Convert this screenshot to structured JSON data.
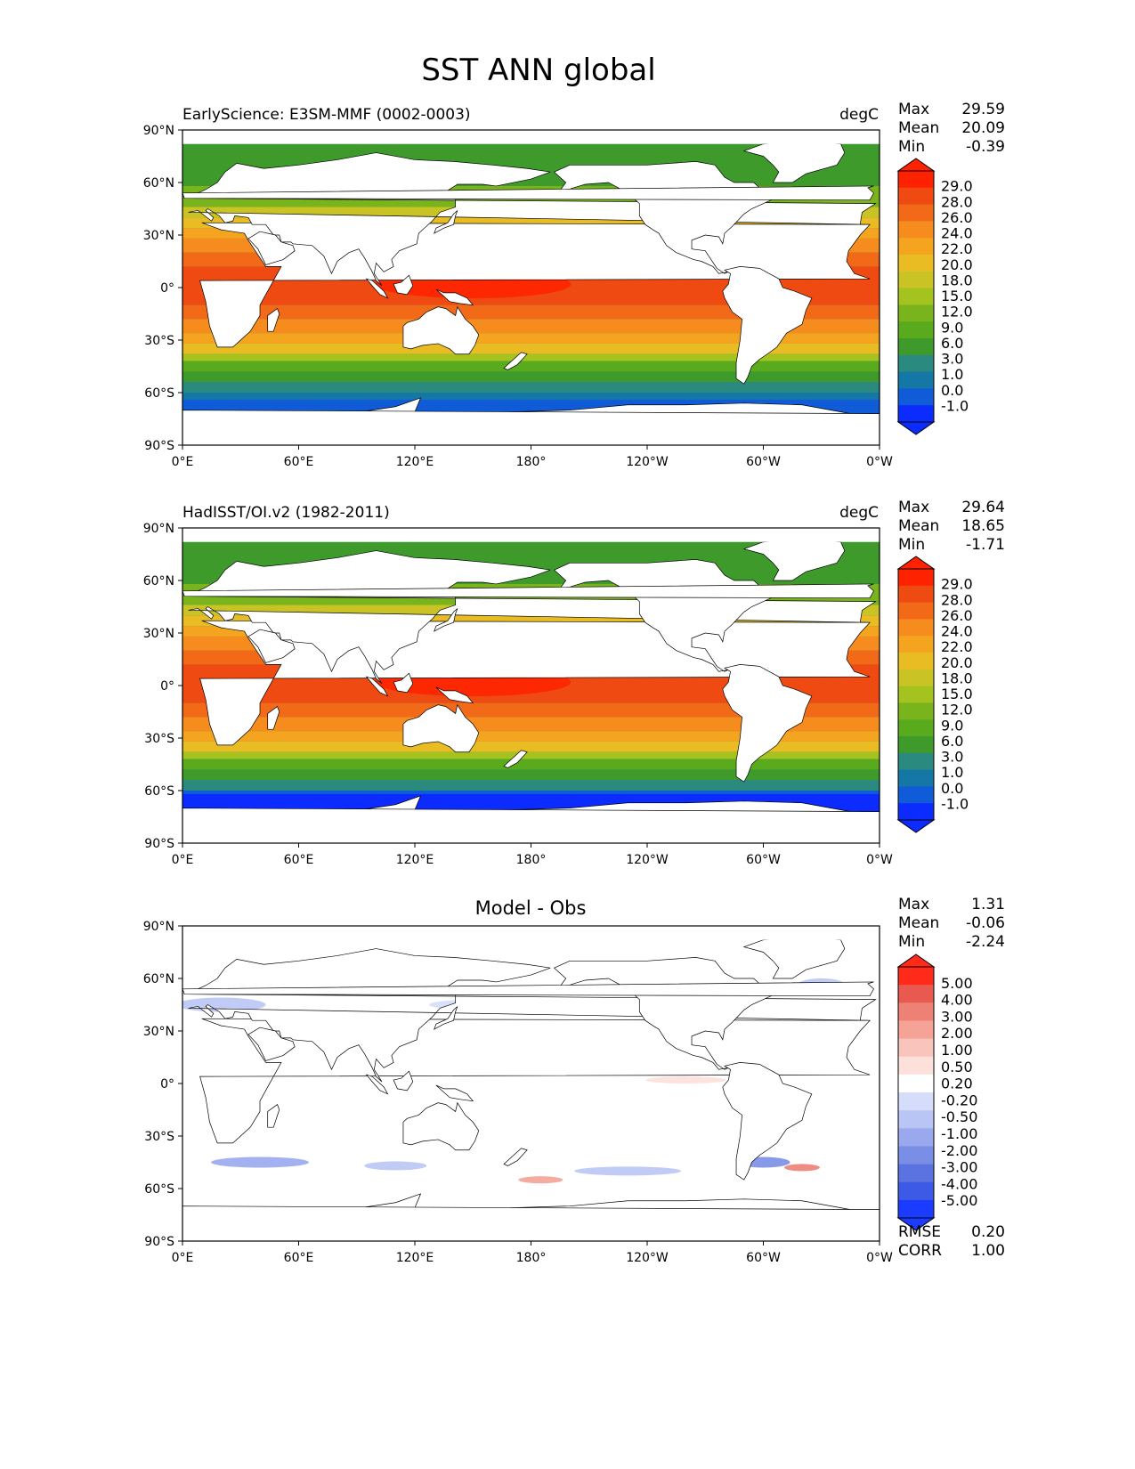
{
  "figure": {
    "title": "SST ANN global"
  },
  "colors": {
    "land": "#ffffff",
    "coast": "#000000",
    "sst_levels": [
      "#0b2bff",
      "#0f5bd8",
      "#1577a6",
      "#2a8a7f",
      "#3f9a2c",
      "#5aaa1e",
      "#7ab41c",
      "#a5c31e",
      "#c9c325",
      "#e8bc22",
      "#f4a41f",
      "#f68b1e",
      "#f26a18",
      "#ee4a12",
      "#ff2200"
    ],
    "diff_levels": [
      "#1b3cff",
      "#3d5ae6",
      "#5a73e0",
      "#7a8ee6",
      "#9aa9ee",
      "#b9c6f5",
      "#d5ddfa",
      "#ffffff",
      "#fde0da",
      "#f8c4bb",
      "#f4a396",
      "#ee8175",
      "#e85a4f",
      "#ff2a1a"
    ]
  },
  "panels": [
    {
      "id": "test",
      "left_title": "EarlyScience: E3SM-MMF (0002-0003)",
      "center_title": "",
      "right_title": "degC",
      "stats": [
        {
          "label": "Max",
          "value": "29.59"
        },
        {
          "label": "Mean",
          "value": "20.09"
        },
        {
          "label": "Min",
          "value": "-0.39"
        }
      ],
      "colorbar_ticks": [
        "29.0",
        "28.0",
        "26.0",
        "24.0",
        "22.0",
        "20.0",
        "18.0",
        "15.0",
        "12.0",
        "9.0",
        "6.0",
        "3.0",
        "1.0",
        "0.0",
        "-1.0"
      ],
      "metrics": []
    },
    {
      "id": "ref",
      "left_title": "HadISST/OI.v2 (1982-2011)",
      "center_title": "",
      "right_title": "degC",
      "stats": [
        {
          "label": "Max",
          "value": "29.64"
        },
        {
          "label": "Mean",
          "value": "18.65"
        },
        {
          "label": "Min",
          "value": "-1.71"
        }
      ],
      "colorbar_ticks": [
        "29.0",
        "28.0",
        "26.0",
        "24.0",
        "22.0",
        "20.0",
        "18.0",
        "15.0",
        "12.0",
        "9.0",
        "6.0",
        "3.0",
        "1.0",
        "0.0",
        "-1.0"
      ],
      "metrics": []
    },
    {
      "id": "diff",
      "left_title": "",
      "center_title": "Model - Obs",
      "right_title": "",
      "stats": [
        {
          "label": "Max",
          "value": "1.31"
        },
        {
          "label": "Mean",
          "value": "-0.06"
        },
        {
          "label": "Min",
          "value": "-2.24"
        }
      ],
      "colorbar_ticks": [
        "5.00",
        "4.00",
        "3.00",
        "2.00",
        "1.00",
        "0.50",
        "0.20",
        "-0.20",
        "-0.50",
        "-1.00",
        "-2.00",
        "-3.00",
        "-4.00",
        "-5.00"
      ],
      "metrics": [
        {
          "label": "RMSE",
          "value": "0.20"
        },
        {
          "label": "CORR",
          "value": "1.00"
        }
      ]
    }
  ],
  "axes": {
    "lat_ticks": [
      "90°N",
      "60°N",
      "30°N",
      "0°",
      "30°S",
      "60°S",
      "90°S"
    ],
    "lon_ticks": [
      "0°E",
      "60°E",
      "120°E",
      "180°",
      "120°W",
      "60°W",
      "0°W"
    ]
  }
}
